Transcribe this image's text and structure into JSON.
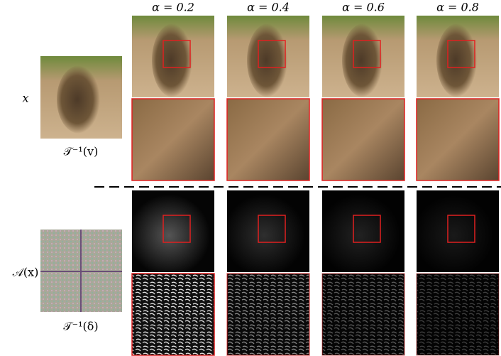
{
  "columns": [
    {
      "label": "α = 0.2"
    },
    {
      "label": "α = 0.4"
    },
    {
      "label": "α = 0.6"
    },
    {
      "label": "α = 0.8"
    }
  ],
  "rows": [
    {
      "label": "x",
      "caption": "𝒯⁻¹(v)"
    },
    {
      "label": "𝒜(x)",
      "caption": "𝒯⁻¹(δ)"
    }
  ]
}
